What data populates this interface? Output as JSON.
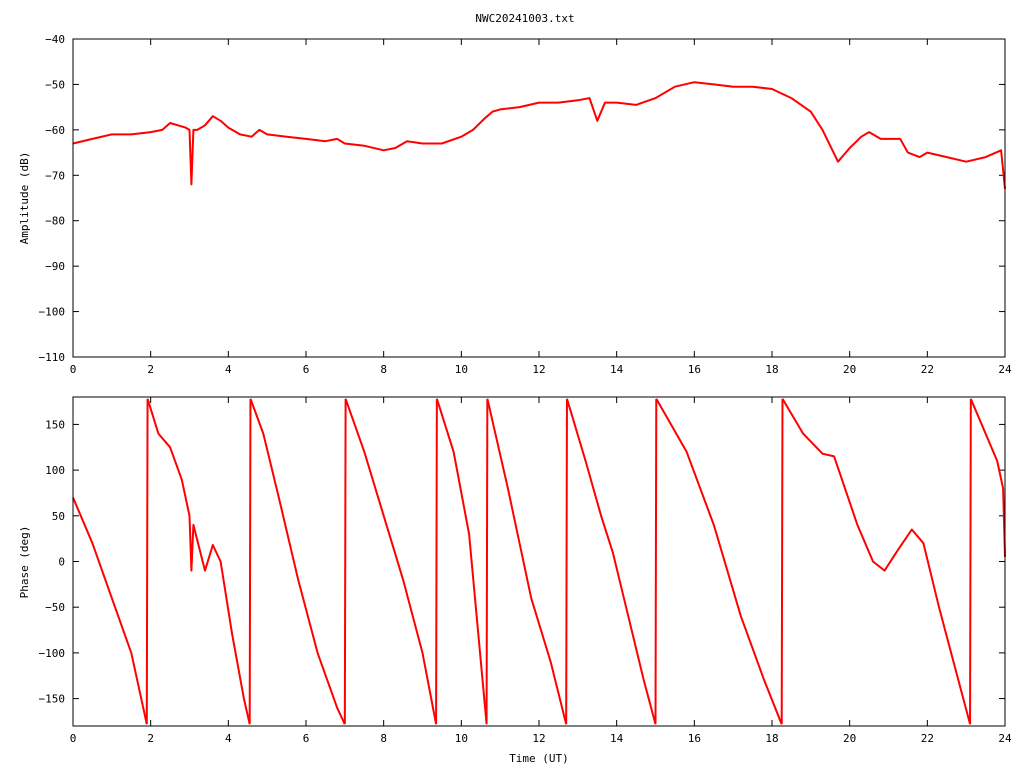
{
  "title": "NWC20241003.txt",
  "line_color": "#ff0000",
  "chart_data": [
    {
      "type": "line",
      "title": "NWC20241003.txt",
      "xlabel": "",
      "ylabel": "Amplitude (dB)",
      "xlim": [
        0,
        24
      ],
      "ylim": [
        -110,
        -40
      ],
      "xticks": [
        "0",
        "2",
        "4",
        "6",
        "8",
        "10",
        "12",
        "14",
        "16",
        "18",
        "20",
        "22",
        "24"
      ],
      "yticks": [
        "-40",
        "-50",
        "-60",
        "-70",
        "-80",
        "-90",
        "-100",
        "-110"
      ],
      "grid": false,
      "series": [
        {
          "x": [
            0,
            0.5,
            1,
            1.5,
            2,
            2.3,
            2.5,
            2.7,
            2.9,
            3.0,
            3.05,
            3.1,
            3.2,
            3.4,
            3.6,
            3.8,
            4.0,
            4.3,
            4.6,
            4.8,
            5.0,
            5.5,
            6.0,
            6.5,
            6.8,
            7.0,
            7.5,
            8.0,
            8.3,
            8.6,
            9.0,
            9.5,
            10.0,
            10.3,
            10.6,
            10.8,
            11.0,
            11.5,
            12.0,
            12.5,
            13.0,
            13.3,
            13.5,
            13.7,
            14.0,
            14.5,
            15.0,
            15.5,
            16.0,
            16.5,
            17.0,
            17.5,
            18.0,
            18.5,
            19.0,
            19.3,
            19.7,
            20.0,
            20.3,
            20.5,
            20.8,
            21.0,
            21.3,
            21.5,
            21.8,
            22.0,
            22.5,
            23.0,
            23.5,
            23.9,
            24.0
          ],
          "y": [
            -63,
            -62,
            -61,
            -61,
            -60.5,
            -60,
            -58.5,
            -59,
            -59.5,
            -60,
            -72,
            -60,
            -60,
            -59,
            -57,
            -58,
            -59.5,
            -61,
            -61.5,
            -60,
            -61,
            -61.5,
            -62,
            -62.5,
            -62,
            -63,
            -63.5,
            -64.5,
            -64,
            -62.5,
            -63,
            -63,
            -61.5,
            -60,
            -57.5,
            -56,
            -55.5,
            -55,
            -54,
            -54,
            -53.5,
            -53,
            -58,
            -54,
            -54,
            -54.5,
            -53,
            -50.5,
            -49.5,
            -50,
            -50.5,
            -50.5,
            -51,
            -53,
            -56,
            -60,
            -67,
            -64,
            -61.5,
            -60.5,
            -62,
            -62,
            -62,
            -65,
            -66,
            -65,
            -66,
            -67,
            -66,
            -64.5,
            -73
          ]
        }
      ]
    },
    {
      "type": "line",
      "xlabel": "Time (UT)",
      "ylabel": "Phase (deg)",
      "xlim": [
        0,
        24
      ],
      "ylim": [
        -180,
        180
      ],
      "xticks": [
        "0",
        "2",
        "4",
        "6",
        "8",
        "10",
        "12",
        "14",
        "16",
        "18",
        "20",
        "22",
        "24"
      ],
      "yticks": [
        "150",
        "100",
        "50",
        "0",
        "-50",
        "-100",
        "-150"
      ],
      "grid": false,
      "series": [
        {
          "segments": [
            [
              [
                0,
                70
              ],
              [
                0.5,
                20
              ],
              [
                1.0,
                -40
              ],
              [
                1.5,
                -100
              ],
              [
                1.9,
                -178
              ]
            ],
            [
              [
                1.92,
                178
              ],
              [
                2.2,
                140
              ],
              [
                2.5,
                125
              ],
              [
                2.8,
                90
              ],
              [
                3.0,
                50
              ],
              [
                3.05,
                -10
              ],
              [
                3.1,
                40
              ],
              [
                3.4,
                -10
              ],
              [
                3.6,
                18
              ],
              [
                3.8,
                0
              ],
              [
                4.1,
                -80
              ],
              [
                4.4,
                -150
              ],
              [
                4.55,
                -178
              ]
            ],
            [
              [
                4.57,
                178
              ],
              [
                4.9,
                140
              ],
              [
                5.3,
                70
              ],
              [
                5.8,
                -20
              ],
              [
                6.3,
                -100
              ],
              [
                6.8,
                -160
              ],
              [
                7.0,
                -178
              ]
            ],
            [
              [
                7.02,
                178
              ],
              [
                7.5,
                120
              ],
              [
                8.0,
                50
              ],
              [
                8.5,
                -20
              ],
              [
                9.0,
                -100
              ],
              [
                9.35,
                -178
              ]
            ],
            [
              [
                9.37,
                178
              ],
              [
                9.8,
                120
              ],
              [
                10.2,
                30
              ],
              [
                10.65,
                -178
              ]
            ],
            [
              [
                10.67,
                178
              ],
              [
                11.2,
                80
              ],
              [
                11.8,
                -40
              ],
              [
                12.3,
                -110
              ],
              [
                12.7,
                -178
              ]
            ],
            [
              [
                12.72,
                178
              ],
              [
                13.2,
                110
              ],
              [
                13.6,
                50
              ],
              [
                13.9,
                10
              ],
              [
                14.3,
                -60
              ],
              [
                14.7,
                -130
              ],
              [
                15.0,
                -178
              ]
            ],
            [
              [
                15.02,
                178
              ],
              [
                15.8,
                120
              ],
              [
                16.5,
                40
              ],
              [
                17.2,
                -60
              ],
              [
                17.8,
                -130
              ],
              [
                18.25,
                -178
              ]
            ],
            [
              [
                18.27,
                178
              ],
              [
                18.8,
                140
              ],
              [
                19.3,
                118
              ],
              [
                19.6,
                115
              ],
              [
                19.8,
                90
              ],
              [
                20.2,
                40
              ],
              [
                20.6,
                0
              ],
              [
                20.9,
                -10
              ],
              [
                21.2,
                10
              ],
              [
                21.6,
                35
              ],
              [
                21.9,
                20
              ],
              [
                22.3,
                -50
              ],
              [
                22.8,
                -130
              ],
              [
                23.1,
                -178
              ]
            ],
            [
              [
                23.12,
                178
              ],
              [
                23.5,
                140
              ],
              [
                23.8,
                110
              ],
              [
                23.95,
                80
              ],
              [
                24.0,
                5
              ]
            ]
          ]
        }
      ]
    }
  ]
}
